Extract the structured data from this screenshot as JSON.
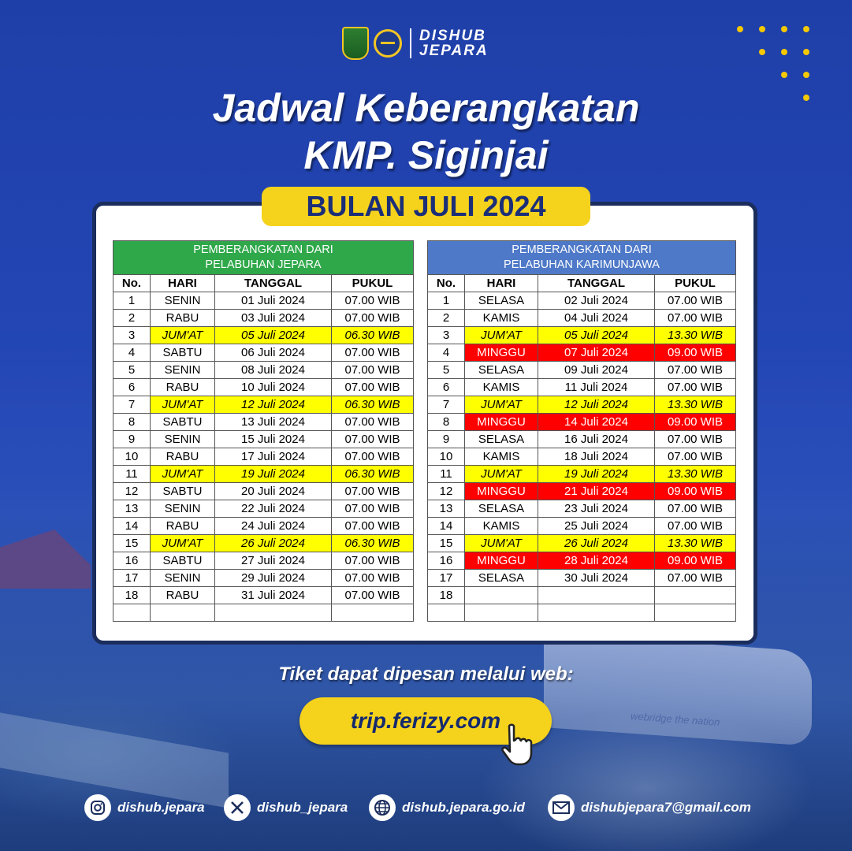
{
  "brand": {
    "logo_line1": "DISHUB",
    "logo_line2": "JEPARA"
  },
  "title": {
    "line1": "Jadwal Keberangkatan",
    "line2": "KMP. Siginjai"
  },
  "month": "BULAN JULI 2024",
  "columns": {
    "no": "No.",
    "hari": "HARI",
    "tanggal": "TANGGAL",
    "pukul": "PUKUL"
  },
  "left_table": {
    "header_line1": "PEMBERANGKATAN DARI",
    "header_line2": "PELABUHAN JEPARA",
    "header_color": "#2fa84a",
    "rows": [
      {
        "no": "1",
        "hari": "SENIN",
        "tanggal": "01 Juli 2024",
        "pukul": "07.00 WIB",
        "type": ""
      },
      {
        "no": "2",
        "hari": "RABU",
        "tanggal": "03 Juli 2024",
        "pukul": "07.00 WIB",
        "type": ""
      },
      {
        "no": "3",
        "hari": "JUM'AT",
        "tanggal": "05 Juli 2024",
        "pukul": "06.30 WIB",
        "type": "fri"
      },
      {
        "no": "4",
        "hari": "SABTU",
        "tanggal": "06 Juli 2024",
        "pukul": "07.00 WIB",
        "type": ""
      },
      {
        "no": "5",
        "hari": "SENIN",
        "tanggal": "08 Juli 2024",
        "pukul": "07.00 WIB",
        "type": ""
      },
      {
        "no": "6",
        "hari": "RABU",
        "tanggal": "10 Juli 2024",
        "pukul": "07.00 WIB",
        "type": ""
      },
      {
        "no": "7",
        "hari": "JUM'AT",
        "tanggal": "12 Juli 2024",
        "pukul": "06.30 WIB",
        "type": "fri"
      },
      {
        "no": "8",
        "hari": "SABTU",
        "tanggal": "13 Juli 2024",
        "pukul": "07.00 WIB",
        "type": ""
      },
      {
        "no": "9",
        "hari": "SENIN",
        "tanggal": "15 Juli 2024",
        "pukul": "07.00 WIB",
        "type": ""
      },
      {
        "no": "10",
        "hari": "RABU",
        "tanggal": "17 Juli 2024",
        "pukul": "07.00 WIB",
        "type": ""
      },
      {
        "no": "11",
        "hari": "JUM'AT",
        "tanggal": "19 Juli 2024",
        "pukul": "06.30 WIB",
        "type": "fri"
      },
      {
        "no": "12",
        "hari": "SABTU",
        "tanggal": "20 Juli 2024",
        "pukul": "07.00 WIB",
        "type": ""
      },
      {
        "no": "13",
        "hari": "SENIN",
        "tanggal": "22 Juli 2024",
        "pukul": "07.00 WIB",
        "type": ""
      },
      {
        "no": "14",
        "hari": "RABU",
        "tanggal": "24 Juli 2024",
        "pukul": "07.00 WIB",
        "type": ""
      },
      {
        "no": "15",
        "hari": "JUM'AT",
        "tanggal": "26 Juli 2024",
        "pukul": "06.30 WIB",
        "type": "fri"
      },
      {
        "no": "16",
        "hari": "SABTU",
        "tanggal": "27 Juli 2024",
        "pukul": "07.00 WIB",
        "type": ""
      },
      {
        "no": "17",
        "hari": "SENIN",
        "tanggal": "29 Juli 2024",
        "pukul": "07.00 WIB",
        "type": ""
      },
      {
        "no": "18",
        "hari": "RABU",
        "tanggal": "31 Juli 2024",
        "pukul": "07.00 WIB",
        "type": ""
      },
      {
        "no": "",
        "hari": "",
        "tanggal": "",
        "pukul": "",
        "type": ""
      }
    ]
  },
  "right_table": {
    "header_line1": "PEMBERANGKATAN DARI",
    "header_line2": "PELABUHAN KARIMUNJAWA",
    "header_color": "#4e79c8",
    "rows": [
      {
        "no": "1",
        "hari": "SELASA",
        "tanggal": "02 Juli 2024",
        "pukul": "07.00 WIB",
        "type": ""
      },
      {
        "no": "2",
        "hari": "KAMIS",
        "tanggal": "04 Juli 2024",
        "pukul": "07.00 WIB",
        "type": ""
      },
      {
        "no": "3",
        "hari": "JUM'AT",
        "tanggal": "05 Juli 2024",
        "pukul": "13.30 WIB",
        "type": "fri"
      },
      {
        "no": "4",
        "hari": "MINGGU",
        "tanggal": "07 Juli 2024",
        "pukul": "09.00 WIB",
        "type": "sun"
      },
      {
        "no": "5",
        "hari": "SELASA",
        "tanggal": "09 Juli 2024",
        "pukul": "07.00 WIB",
        "type": ""
      },
      {
        "no": "6",
        "hari": "KAMIS",
        "tanggal": "11 Juli 2024",
        "pukul": "07.00 WIB",
        "type": ""
      },
      {
        "no": "7",
        "hari": "JUM'AT",
        "tanggal": "12 Juli 2024",
        "pukul": "13.30 WIB",
        "type": "fri"
      },
      {
        "no": "8",
        "hari": "MINGGU",
        "tanggal": "14 Juli 2024",
        "pukul": "09.00 WIB",
        "type": "sun"
      },
      {
        "no": "9",
        "hari": "SELASA",
        "tanggal": "16 Juli 2024",
        "pukul": "07.00 WIB",
        "type": ""
      },
      {
        "no": "10",
        "hari": "KAMIS",
        "tanggal": "18 Juli 2024",
        "pukul": "07.00 WIB",
        "type": ""
      },
      {
        "no": "11",
        "hari": "JUM'AT",
        "tanggal": "19 Juli 2024",
        "pukul": "13.30 WIB",
        "type": "fri"
      },
      {
        "no": "12",
        "hari": "MINGGU",
        "tanggal": "21 Juli 2024",
        "pukul": "09.00 WIB",
        "type": "sun"
      },
      {
        "no": "13",
        "hari": "SELASA",
        "tanggal": "23 Juli 2024",
        "pukul": "07.00 WIB",
        "type": ""
      },
      {
        "no": "14",
        "hari": "KAMIS",
        "tanggal": "25 Juli 2024",
        "pukul": "07.00 WIB",
        "type": ""
      },
      {
        "no": "15",
        "hari": "JUM'AT",
        "tanggal": "26 Juli 2024",
        "pukul": "13.30 WIB",
        "type": "fri"
      },
      {
        "no": "16",
        "hari": "MINGGU",
        "tanggal": "28 Juli 2024",
        "pukul": "09.00 WIB",
        "type": "sun"
      },
      {
        "no": "17",
        "hari": "SELASA",
        "tanggal": "30 Juli 2024",
        "pukul": "07.00 WIB",
        "type": ""
      },
      {
        "no": "18",
        "hari": "",
        "tanggal": "",
        "pukul": "",
        "type": ""
      },
      {
        "no": "",
        "hari": "",
        "tanggal": "",
        "pukul": "",
        "type": ""
      }
    ]
  },
  "cta": {
    "text": "Tiket dapat dipesan melalui web:",
    "url_label": "trip.ferizy.com"
  },
  "footer": {
    "instagram": "dishub.jepara",
    "x": "dishub_jepara",
    "website": "dishub.jepara.go.id",
    "email": "dishubjepara7@gmail.com"
  },
  "colors": {
    "accent_yellow": "#f5d21c",
    "background_blue": "#2346b5",
    "friday_highlight": "#ffff00",
    "sunday_highlight": "#ff0000"
  },
  "icons": [
    "regency-emblem-icon",
    "dishub-globe-icon",
    "instagram-icon",
    "x-icon",
    "globe-icon",
    "mail-icon",
    "pointer-hand-icon"
  ]
}
